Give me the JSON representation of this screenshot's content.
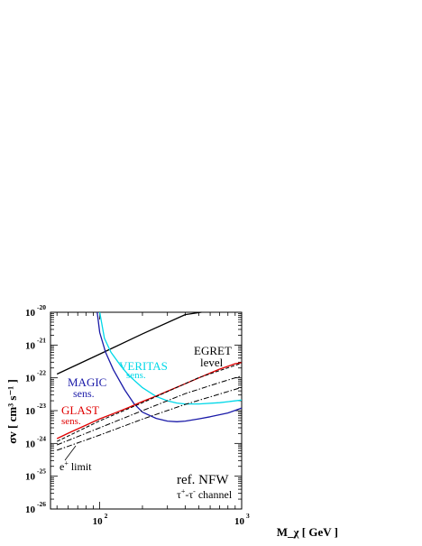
{
  "chart_data": {
    "type": "line",
    "title": "",
    "xlabel": "M_χ [ GeV ]",
    "ylabel": "σv [ cm³ s⁻¹ ]",
    "x_scale": "log",
    "y_scale": "log",
    "xlim": [
      45,
      1000
    ],
    "ylim": [
      1e-26,
      1e-20
    ],
    "grid": false,
    "x_ticks": [
      {
        "value": 100,
        "base": "10",
        "exp": "2"
      },
      {
        "value": 1000,
        "base": "10",
        "exp": "3"
      }
    ],
    "y_ticks": [
      {
        "value": 1e-26,
        "base": "10",
        "exp": "-26"
      },
      {
        "value": 1e-25,
        "base": "10",
        "exp": "-25"
      },
      {
        "value": 1e-24,
        "base": "10",
        "exp": "-24"
      },
      {
        "value": 1e-23,
        "base": "10",
        "exp": "-23"
      },
      {
        "value": 1e-22,
        "base": "10",
        "exp": "-22"
      },
      {
        "value": 1e-21,
        "base": "10",
        "exp": "-21"
      },
      {
        "value": 1e-20,
        "base": "10",
        "exp": "-20"
      }
    ],
    "series": [
      {
        "name": "EGRET level",
        "color": "#000000",
        "style": "solid",
        "points": [
          [
            50,
            1.3e-22
          ],
          [
            100,
            5.3e-22
          ],
          [
            200,
            2.2e-21
          ],
          [
            400,
            8.5e-21
          ],
          [
            520,
            1e-20
          ]
        ]
      },
      {
        "name": "MAGIC sens.",
        "color": "#1a1aa8",
        "style": "solid",
        "points": [
          [
            96,
            1e-20
          ],
          [
            100,
            2.4e-21
          ],
          [
            110,
            6e-22
          ],
          [
            125,
            1.75e-22
          ],
          [
            150,
            4.3e-23
          ],
          [
            175,
            1.6e-23
          ],
          [
            200,
            9e-24
          ],
          [
            250,
            5.8e-24
          ],
          [
            300,
            4.8e-24
          ],
          [
            350,
            4.6e-24
          ],
          [
            400,
            4.8e-24
          ],
          [
            500,
            5.6e-24
          ],
          [
            600,
            6.5e-24
          ],
          [
            800,
            8.5e-24
          ],
          [
            1000,
            1.2e-23
          ]
        ]
      },
      {
        "name": "VERITAS sens.",
        "color": "#00d8e8",
        "style": "solid",
        "points": [
          [
            100,
            1e-20
          ],
          [
            108,
            1.6e-21
          ],
          [
            120,
            6e-22
          ],
          [
            140,
            2.4e-22
          ],
          [
            160,
            1.2e-22
          ],
          [
            200,
            5e-23
          ],
          [
            250,
            2.7e-23
          ],
          [
            300,
            2e-23
          ],
          [
            350,
            1.7e-23
          ],
          [
            400,
            1.6e-23
          ],
          [
            500,
            1.6e-23
          ],
          [
            700,
            1.75e-23
          ],
          [
            1000,
            2.1e-23
          ]
        ]
      },
      {
        "name": "GLAST sens.",
        "color": "#e00000",
        "style": "solid",
        "points": [
          [
            50,
            1.4e-24
          ],
          [
            60,
            2.05e-24
          ],
          [
            80,
            3.6e-24
          ],
          [
            100,
            5.6e-24
          ],
          [
            130,
            8.7e-24
          ],
          [
            160,
            1.25e-23
          ],
          [
            200,
            1.9e-23
          ],
          [
            250,
            2.8e-23
          ],
          [
            300,
            3.9e-23
          ],
          [
            400,
            6.6e-23
          ],
          [
            500,
            1e-22
          ],
          [
            600,
            1.4e-22
          ],
          [
            700,
            1.85e-22
          ],
          [
            800,
            2.25e-22
          ],
          [
            900,
            2.7e-22
          ],
          [
            1000,
            2.9e-22
          ]
        ]
      },
      {
        "name": "GLAST sens. (dashed)",
        "color": "#000000",
        "style": "dashed",
        "points": [
          [
            50,
            1.15e-24
          ],
          [
            100,
            4.9e-24
          ],
          [
            200,
            1.75e-23
          ],
          [
            300,
            3.8e-23
          ],
          [
            500,
            1.02e-22
          ],
          [
            1000,
            2.8e-22
          ]
        ]
      },
      {
        "name": "e+ limit (upper)",
        "color": "#000000",
        "style": "dashdot",
        "points": [
          [
            50,
            9e-25
          ],
          [
            100,
            3e-24
          ],
          [
            200,
            1e-23
          ],
          [
            400,
            3.3e-23
          ],
          [
            700,
            7.2e-23
          ],
          [
            1000,
            1.15e-22
          ]
        ]
      },
      {
        "name": "e+ limit (lower)",
        "color": "#000000",
        "style": "dashdot",
        "points": [
          [
            50,
            6.2e-25
          ],
          [
            100,
            1.8e-24
          ],
          [
            200,
            5.5e-24
          ],
          [
            400,
            1.55e-23
          ],
          [
            700,
            3.2e-23
          ],
          [
            1000,
            5.1e-23
          ]
        ]
      }
    ]
  },
  "annotations": {
    "egret_line1": "EGRET",
    "egret_line2": "level",
    "veritas_line1": "VERITAS",
    "veritas_line2": "sens.",
    "magic_line1": "MAGIC",
    "magic_line2": "sens.",
    "glast_line1": "GLAST",
    "glast_line2": "sens.",
    "eplus_base": "e",
    "eplus_sup": "+",
    "eplus_rest": " limit",
    "profile": "ref. NFW",
    "channel_tau1": "τ",
    "channel_sup1": "+",
    "channel_dash": "-τ",
    "channel_sup2": "-",
    "channel_rest": " channel"
  },
  "colors": {
    "egret": "#000000",
    "magic": "#1a1aa8",
    "veritas": "#00d8e8",
    "glast": "#e00000"
  }
}
